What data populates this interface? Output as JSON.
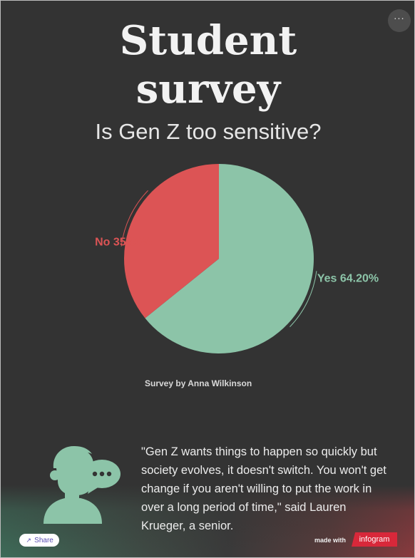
{
  "header": {
    "title_line1": "Student",
    "title_line2": "survey",
    "subtitle": "Is Gen Z too sensitive?",
    "more_label": "···"
  },
  "chart_data": {
    "type": "pie",
    "title": "Is Gen Z too sensitive?",
    "slices": [
      {
        "label": "Yes",
        "value": 64.2,
        "display": "Yes 64.20%",
        "color": "#8cc4a8"
      },
      {
        "label": "No",
        "value": 35.8,
        "display": "No 35.80%",
        "color": "#dc5455"
      }
    ],
    "start": "top, clockwise"
  },
  "source": "Survey by Anna Wilkinson",
  "quote": {
    "text": "\"Gen Z wants things to happen so quickly but society evolves, it doesn't switch. You won't get change if you aren't willing to put the work in over a long period of time,\" said Lauren Krueger, a senior."
  },
  "footer": {
    "share_label": "Share",
    "made_with": "made with",
    "brand": "infogram"
  },
  "colors": {
    "background": "#333333",
    "accent_green": "#8cc4a8",
    "accent_red": "#dc5455"
  },
  "icons": {
    "more": "ellipsis-icon",
    "share": "share-icon",
    "avatar": "person-speech-bubble-icon"
  }
}
